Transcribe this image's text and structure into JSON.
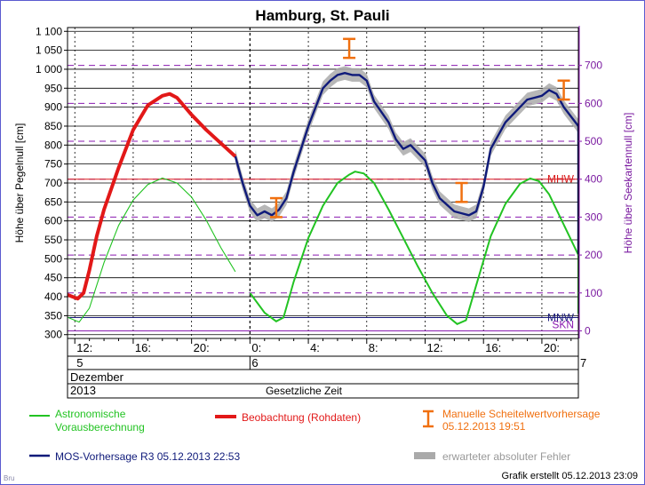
{
  "chart_data": {
    "type": "line",
    "title": "Hamburg, St. Pauli",
    "ylabel_left": "Höhe über Pegelnull [cm]",
    "ylabel_right": "Höhe über Seekartennull [cm]",
    "ylim_left": [
      290,
      1110
    ],
    "yticks_left": [
      300,
      350,
      400,
      450,
      500,
      550,
      600,
      650,
      700,
      750,
      800,
      850,
      900,
      950,
      1000,
      1050,
      1100
    ],
    "yticks_left_labels": [
      "300",
      "350",
      "400",
      "450",
      "500",
      "550",
      "600",
      "650",
      "700",
      "750",
      "800",
      "850",
      "900",
      "950",
      "1 000",
      "1 050",
      "1 100"
    ],
    "yticks_right": [
      0,
      100,
      200,
      300,
      400,
      500,
      600,
      700
    ],
    "right_axis_offset": 310,
    "xlim_hours": [
      11.5,
      46.5
    ],
    "xtick_labels": [
      {
        "hour": 12,
        "label": "12:"
      },
      {
        "hour": 16,
        "label": "16:"
      },
      {
        "hour": 20,
        "label": "20:"
      },
      {
        "hour": 24,
        "label": "0:"
      },
      {
        "hour": 28,
        "label": "4:"
      },
      {
        "hour": 32,
        "label": "8:"
      },
      {
        "hour": 36,
        "label": "12:"
      },
      {
        "hour": 40,
        "label": "16:"
      },
      {
        "hour": 44,
        "label": "20:"
      },
      {
        "hour": 48,
        "label": "0:"
      }
    ],
    "day_labels": [
      {
        "hour": 12,
        "label": "5"
      },
      {
        "hour": 24,
        "label": "6"
      },
      {
        "hour": 48,
        "label": "7"
      }
    ],
    "month_label": "Dezember",
    "year_label": "2013",
    "time_axis_label": "Gesetzliche Zeit",
    "reference_lines": [
      {
        "label": "MHW",
        "value": 710,
        "color": "#d81818"
      },
      {
        "label": "MNW",
        "value": 345,
        "color": "#1a1a7a"
      },
      {
        "label": "SKN",
        "value": 310,
        "color": "#8a1ab0"
      }
    ],
    "series": [
      {
        "name": "Astronomische Vorausberechnung",
        "color": "#22c322",
        "points": [
          [
            11.5,
            346
          ],
          [
            12.3,
            333
          ],
          [
            13.0,
            370
          ],
          [
            14.0,
            490
          ],
          [
            15.0,
            588
          ],
          [
            16.0,
            655
          ],
          [
            17.0,
            696
          ],
          [
            18.0,
            713
          ],
          [
            19.0,
            700
          ],
          [
            20.0,
            663
          ],
          [
            21.0,
            602
          ],
          [
            22.0,
            530
          ],
          [
            23.0,
            466
          ],
          [
            24.0,
            410
          ],
          [
            25.0,
            358
          ],
          [
            25.8,
            335
          ],
          [
            26.3,
            345
          ],
          [
            27.0,
            440
          ],
          [
            28.0,
            555
          ],
          [
            29.0,
            640
          ],
          [
            30.0,
            700
          ],
          [
            30.8,
            722
          ],
          [
            31.2,
            730
          ],
          [
            31.8,
            725
          ],
          [
            32.5,
            700
          ],
          [
            33.5,
            630
          ],
          [
            34.5,
            555
          ],
          [
            35.5,
            480
          ],
          [
            36.5,
            410
          ],
          [
            37.5,
            350
          ],
          [
            38.2,
            328
          ],
          [
            38.8,
            338
          ],
          [
            39.5,
            430
          ],
          [
            40.5,
            560
          ],
          [
            41.5,
            645
          ],
          [
            42.5,
            698
          ],
          [
            43.2,
            712
          ],
          [
            43.8,
            705
          ],
          [
            44.5,
            670
          ],
          [
            45.5,
            590
          ],
          [
            46.5,
            510
          ],
          [
            47.5,
            440
          ],
          [
            48.3,
            382
          ],
          [
            48.8,
            355
          ],
          [
            49.3,
            370
          ],
          [
            49.8,
            425
          ]
        ]
      },
      {
        "name": "Beobachtung (Rohdaten)",
        "color": "#e21818",
        "points": [
          [
            11.5,
            405
          ],
          [
            12.2,
            395
          ],
          [
            12.6,
            410
          ],
          [
            13.0,
            470
          ],
          [
            13.5,
            560
          ],
          [
            14.0,
            630
          ],
          [
            15.0,
            740
          ],
          [
            16.0,
            840
          ],
          [
            17.0,
            905
          ],
          [
            18.0,
            930
          ],
          [
            18.5,
            935
          ],
          [
            19.0,
            925
          ],
          [
            20.0,
            880
          ],
          [
            21.0,
            840
          ],
          [
            22.0,
            805
          ],
          [
            23.0,
            770
          ]
        ]
      },
      {
        "name": "MOS-Vorhersage R3 05.12.2013 22:53",
        "color": "#0f1a7a",
        "points": [
          [
            23.0,
            770
          ],
          [
            23.5,
            700
          ],
          [
            24.0,
            640
          ],
          [
            24.5,
            615
          ],
          [
            25.0,
            625
          ],
          [
            25.5,
            615
          ],
          [
            26.0,
            630
          ],
          [
            26.5,
            660
          ],
          [
            27.0,
            730
          ],
          [
            28.0,
            850
          ],
          [
            29.0,
            950
          ],
          [
            29.5,
            970
          ],
          [
            30.0,
            985
          ],
          [
            30.5,
            990
          ],
          [
            31.0,
            985
          ],
          [
            31.5,
            985
          ],
          [
            32.0,
            970
          ],
          [
            32.5,
            915
          ],
          [
            33.5,
            860
          ],
          [
            34.0,
            815
          ],
          [
            34.5,
            790
          ],
          [
            35.0,
            800
          ],
          [
            35.5,
            780
          ],
          [
            36.0,
            760
          ],
          [
            36.5,
            700
          ],
          [
            37.0,
            660
          ],
          [
            38.0,
            625
          ],
          [
            38.5,
            620
          ],
          [
            39.0,
            615
          ],
          [
            39.5,
            625
          ],
          [
            40.0,
            690
          ],
          [
            40.5,
            790
          ],
          [
            41.5,
            860
          ],
          [
            42.5,
            900
          ],
          [
            43.0,
            920
          ],
          [
            43.5,
            925
          ],
          [
            44.0,
            930
          ],
          [
            44.5,
            945
          ],
          [
            45.0,
            935
          ],
          [
            45.5,
            900
          ],
          [
            46.5,
            850
          ],
          [
            47.5,
            790
          ],
          [
            48.5,
            720
          ],
          [
            49.5,
            660
          ],
          [
            50.5,
            610
          ],
          [
            51.5,
            560
          ],
          [
            52.0,
            520
          ],
          [
            52.3,
            515
          ],
          [
            52.7,
            540
          ],
          [
            53.0,
            560
          ]
        ]
      }
    ],
    "error_band": {
      "name": "erwarteter absoluter Fehler",
      "color": "#aaaaaa",
      "halfwidth": 18
    },
    "peak_forecasts": {
      "name": "Manuelle Scheitelwertvorhersage",
      "issued": "05.12.2013 19:51",
      "color": "#f07010",
      "bars": [
        [
          25.8,
          610,
          660
        ],
        [
          30.8,
          1030,
          1080
        ],
        [
          38.5,
          650,
          700
        ],
        [
          45.5,
          920,
          970
        ]
      ]
    },
    "legend": [
      {
        "text1": "Astronomische",
        "text2": "Vorausberechnung",
        "color": "#22c322"
      },
      {
        "text1": "Beobachtung (Rohdaten)",
        "color": "#e21818"
      },
      {
        "text1": "Manuelle Scheitelwertvorhersage",
        "text2": "05.12.2013 19:51",
        "color": "#f07010"
      },
      {
        "text1": "MOS-Vorhersage R3 05.12.2013 22:53",
        "color": "#0f1a7a"
      },
      {
        "text1": "erwarteter absoluter Fehler",
        "color": "#aaaaaa"
      }
    ]
  },
  "footer": {
    "created": "Grafik erstellt 05.12.2013 23:09",
    "logo": "Bru"
  }
}
